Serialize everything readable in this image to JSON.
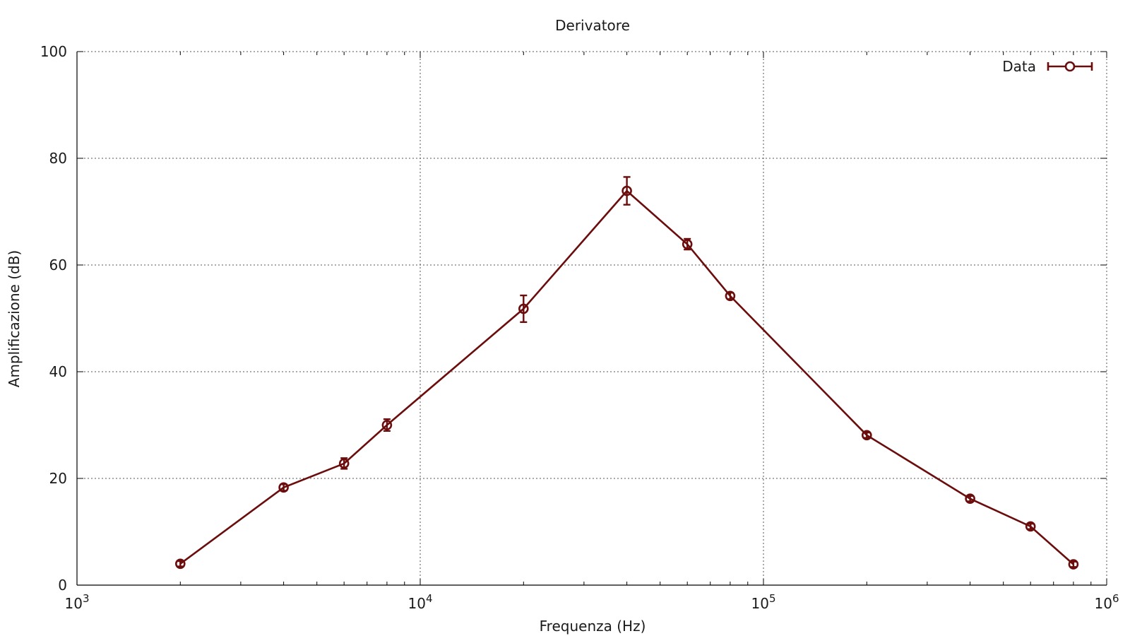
{
  "chart_data": {
    "type": "line",
    "title": "Derivatore",
    "xlabel": "Frequenza (Hz)",
    "ylabel": "Amplificazione (dB)",
    "x_scale": "log",
    "xlim": [
      1000,
      1000000
    ],
    "ylim": [
      0,
      100
    ],
    "x_ticks": [
      {
        "value": 1000,
        "base": "10",
        "exp": "3"
      },
      {
        "value": 10000,
        "base": "10",
        "exp": "4"
      },
      {
        "value": 100000,
        "base": "10",
        "exp": "5"
      },
      {
        "value": 1000000,
        "base": "10",
        "exp": "6"
      }
    ],
    "y_ticks": [
      0,
      20,
      40,
      60,
      80,
      100
    ],
    "grid": true,
    "legend_position": "top-right",
    "color": "#6b0d0d",
    "series": [
      {
        "name": "Data",
        "x": [
          2000,
          4000,
          6000,
          8000,
          20000,
          40000,
          60000,
          80000,
          200000,
          400000,
          600000,
          800000
        ],
        "y": [
          4.0,
          18.3,
          22.8,
          30.0,
          51.8,
          73.9,
          63.9,
          54.2,
          28.1,
          16.2,
          11.0,
          3.9
        ],
        "yerr": [
          0.5,
          0.6,
          1.0,
          1.1,
          2.5,
          2.6,
          1.0,
          0.6,
          0.5,
          0.5,
          0.5,
          0.5
        ]
      }
    ]
  }
}
